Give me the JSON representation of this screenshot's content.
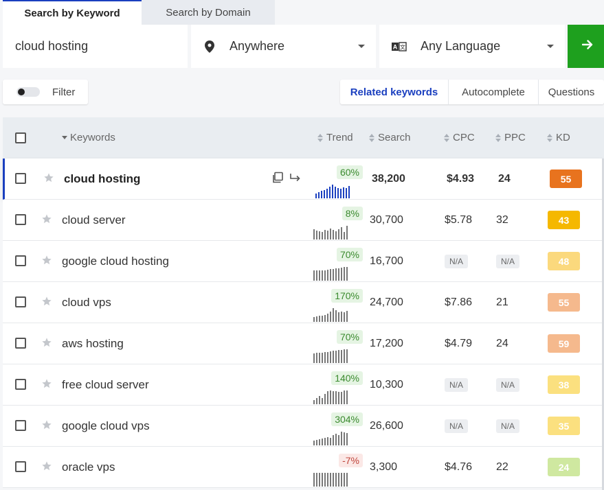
{
  "tabs": [
    "Search by Keyword",
    "Search by Domain"
  ],
  "search": {
    "keyword": "cloud hosting",
    "location": "Anywhere",
    "language": "Any Language",
    "location_icon": "map-pin-icon",
    "language_icon": "translate-icon",
    "go_icon": "arrow-right-icon"
  },
  "filter": {
    "label": "Filter",
    "enabled": false
  },
  "mode_tabs": [
    "Related keywords",
    "Autocomplete",
    "Questions"
  ],
  "table": {
    "headers": {
      "keywords": "Keywords",
      "trend": "Trend",
      "search": "Search",
      "cpc": "CPC",
      "ppc": "PPC",
      "kd": "KD"
    },
    "rows": [
      {
        "keyword": "cloud hosting",
        "trend": "60%",
        "trend_dir": "up",
        "bars": [
          0.35,
          0.45,
          0.55,
          0.6,
          0.7,
          0.85,
          1.0,
          0.85,
          0.75,
          0.7,
          0.8,
          0.75,
          0.9
        ],
        "search": "38,200",
        "cpc": "$4.93",
        "ppc": "24",
        "kd": "55",
        "kd_color": "#e8731e",
        "selected": true
      },
      {
        "keyword": "cloud server",
        "trend": "8%",
        "trend_dir": "up",
        "bars": [
          0.75,
          0.65,
          0.6,
          0.55,
          0.7,
          0.65,
          0.8,
          0.7,
          0.6,
          0.75,
          0.9,
          0.55,
          1.0
        ],
        "search": "30,700",
        "cpc": "$5.78",
        "ppc": "32",
        "kd": "43",
        "kd_color": "#f5b800"
      },
      {
        "keyword": "google cloud hosting",
        "trend": "70%",
        "trend_dir": "up",
        "bars": [
          0.75,
          0.75,
          0.75,
          0.75,
          0.75,
          0.8,
          0.85,
          0.85,
          0.9,
          0.9,
          0.95,
          1.0,
          1.0
        ],
        "search": "16,700",
        "cpc": "N/A",
        "ppc": "N/A",
        "kd": "48",
        "kd_color": "#fbd97d"
      },
      {
        "keyword": "cloud vps",
        "trend": "170%",
        "trend_dir": "up",
        "bars": [
          0.35,
          0.4,
          0.45,
          0.45,
          0.5,
          0.6,
          0.75,
          1.0,
          0.85,
          0.7,
          0.75,
          0.7,
          0.8
        ],
        "search": "24,700",
        "cpc": "$7.86",
        "ppc": "21",
        "kd": "55",
        "kd_color": "#f5b98d"
      },
      {
        "keyword": "aws hosting",
        "trend": "70%",
        "trend_dir": "up",
        "bars": [
          0.7,
          0.75,
          0.75,
          0.75,
          0.8,
          0.8,
          0.85,
          0.9,
          0.9,
          0.95,
          0.95,
          1.0,
          1.0
        ],
        "search": "17,200",
        "cpc": "$4.79",
        "ppc": "24",
        "kd": "59",
        "kd_color": "#f5b98d"
      },
      {
        "keyword": "free cloud server",
        "trend": "140%",
        "trend_dir": "up",
        "bars": [
          0.3,
          0.45,
          0.6,
          0.45,
          0.75,
          0.95,
          1.0,
          0.95,
          0.95,
          0.9,
          0.9,
          1.0,
          1.0
        ],
        "search": "10,300",
        "cpc": "N/A",
        "ppc": "N/A",
        "kd": "38",
        "kd_color": "#fbe07f"
      },
      {
        "keyword": "google cloud vps",
        "trend": "304%",
        "trend_dir": "up",
        "bars": [
          0.35,
          0.4,
          0.45,
          0.5,
          0.55,
          0.6,
          0.55,
          0.75,
          0.85,
          0.75,
          1.0,
          0.95,
          0.9
        ],
        "search": "26,600",
        "cpc": "N/A",
        "ppc": "N/A",
        "kd": "35",
        "kd_color": "#fbe07f"
      },
      {
        "keyword": "oracle vps",
        "trend": "-7%",
        "trend_dir": "down",
        "bars": [
          1.0,
          1.0,
          1.0,
          1.0,
          1.0,
          1.0,
          1.0,
          1.0,
          1.0,
          1.0,
          1.0,
          1.0,
          1.0
        ],
        "search": "3,300",
        "cpc": "$4.76",
        "ppc": "22",
        "kd": "24",
        "kd_color": "#cfe8a0"
      }
    ]
  }
}
